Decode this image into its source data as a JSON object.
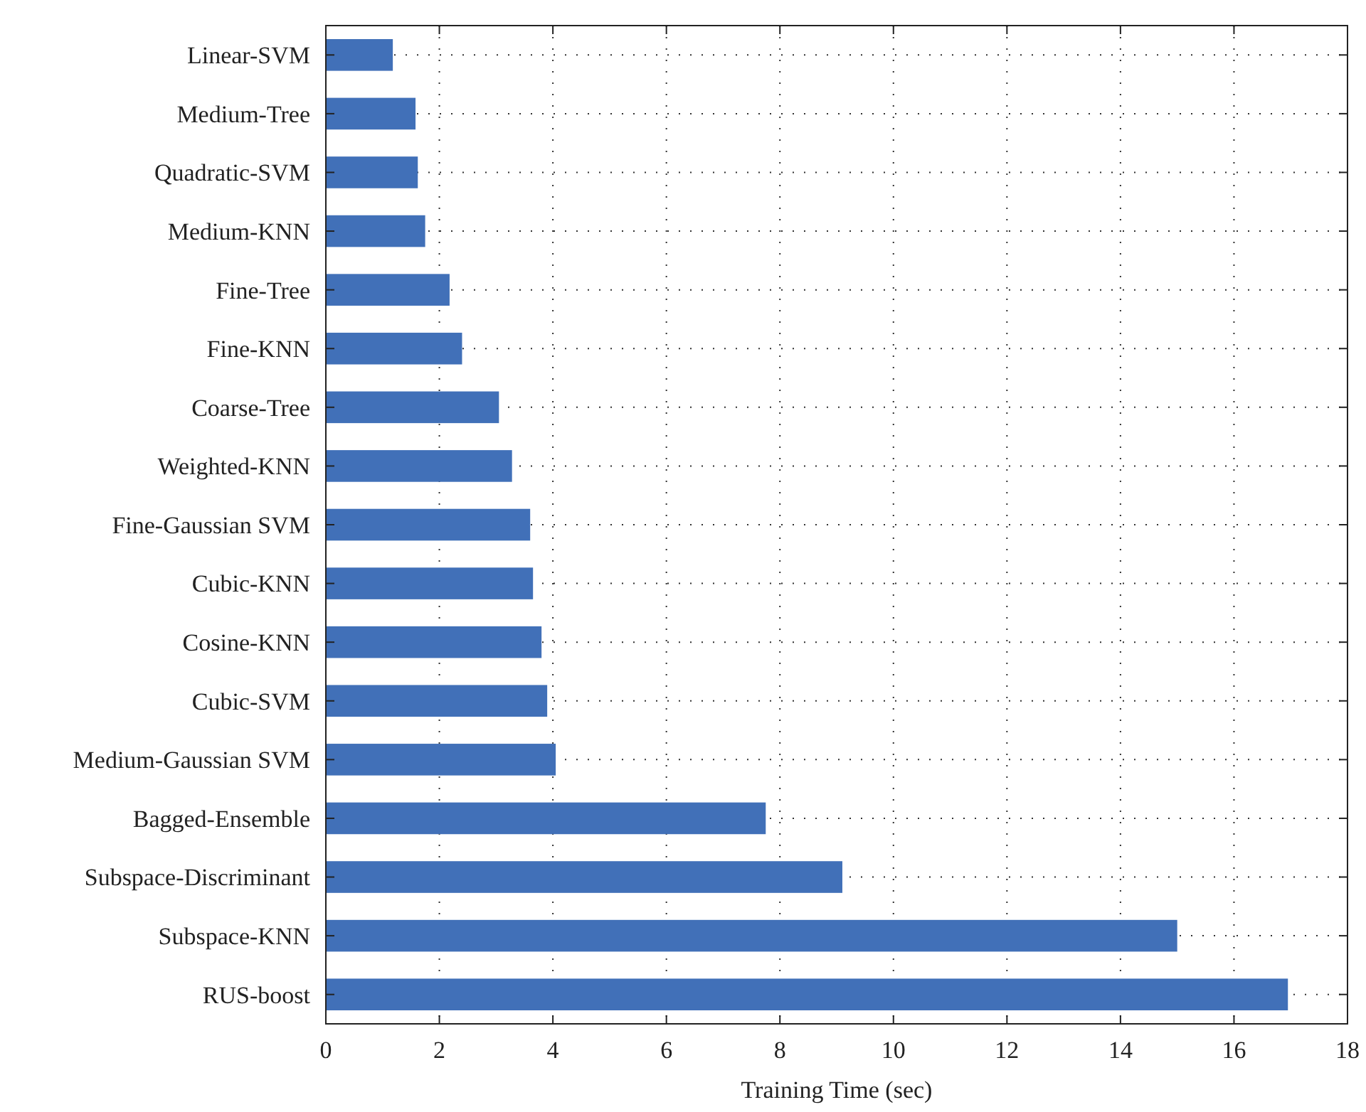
{
  "chart_data": {
    "type": "bar",
    "orientation": "horizontal",
    "xlabel": "Training Time (sec)",
    "categories": [
      "Linear-SVM",
      "Medium-Tree",
      "Quadratic-SVM",
      "Medium-KNN",
      "Fine-Tree",
      "Fine-KNN",
      "Coarse-Tree",
      "Weighted-KNN",
      "Fine-Gaussian SVM",
      "Cubic-KNN",
      "Cosine-KNN",
      "Cubic-SVM",
      "Medium-Gaussian SVM",
      "Bagged-Ensemble",
      "Subspace-Discriminant",
      "Subspace-KNN",
      "RUS-boost"
    ],
    "values": [
      1.18,
      1.58,
      1.62,
      1.75,
      2.18,
      2.4,
      3.05,
      3.28,
      3.6,
      3.65,
      3.8,
      3.9,
      4.05,
      7.75,
      9.1,
      15.0,
      16.95
    ],
    "color": "#4170b8",
    "xlim": [
      0,
      18
    ],
    "xticks": [
      0,
      2,
      4,
      6,
      8,
      10,
      12,
      14,
      16,
      18
    ],
    "grid": true
  }
}
